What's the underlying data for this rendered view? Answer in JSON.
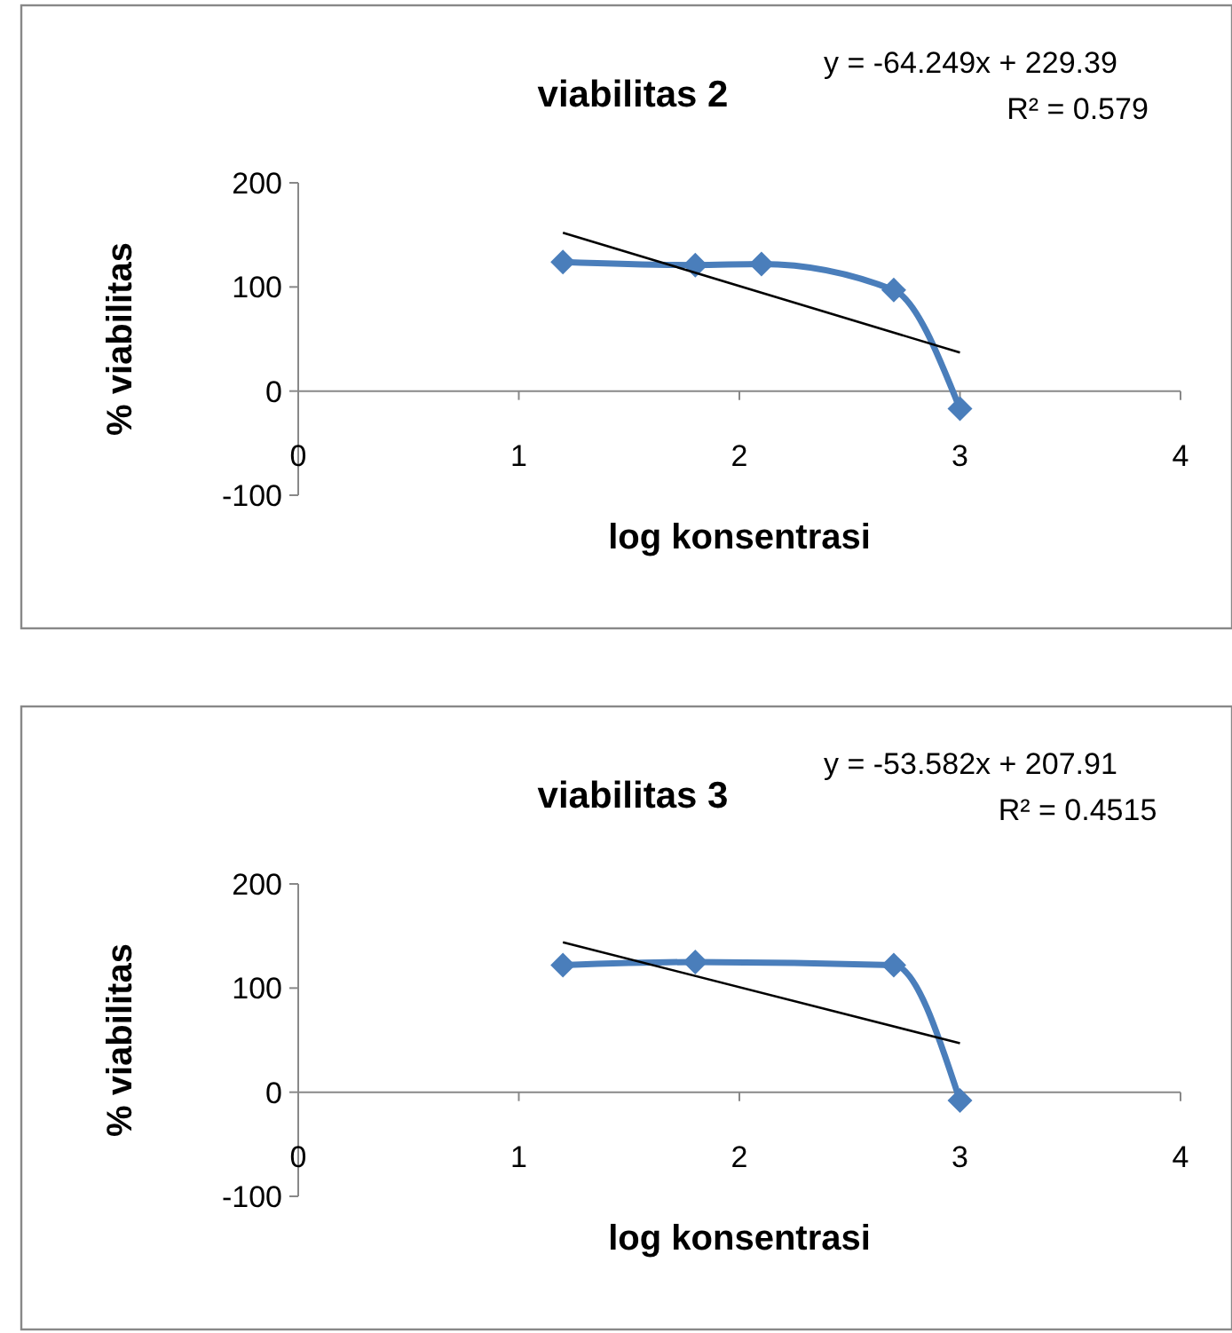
{
  "chart_data": [
    {
      "type": "line",
      "title": "viabilitas 2",
      "xlabel": "log konsentrasi",
      "ylabel": "% viabilitas",
      "xlim": [
        0,
        4
      ],
      "xticks": [
        0,
        1,
        2,
        3,
        4
      ],
      "ylim": [
        -100,
        200
      ],
      "yticks": [
        -100,
        0,
        100,
        200
      ],
      "grid": false,
      "annotations": [
        "y = -64.249x + 229.39",
        "R² = 0.579"
      ],
      "series": [
        {
          "color": "#4a7ebb",
          "marker": "diamond",
          "line_style": "solid",
          "x": [
            1.2,
            1.8,
            2.1,
            2.7,
            3
          ],
          "values": [
            124,
            121,
            122,
            97,
            -17
          ]
        },
        {
          "color": "#000000",
          "marker": "none",
          "line_style": "solid",
          "x": [
            1.2,
            3
          ],
          "values": [
            152,
            37
          ]
        }
      ]
    },
    {
      "type": "line",
      "title": "viabilitas 3",
      "xlabel": "log konsentrasi",
      "ylabel": "% viabilitas",
      "xlim": [
        0,
        4
      ],
      "xticks": [
        0,
        1,
        2,
        3,
        4
      ],
      "ylim": [
        -100,
        200
      ],
      "yticks": [
        -100,
        0,
        100,
        200
      ],
      "grid": false,
      "annotations": [
        "y = -53.582x + 207.91",
        "R² = 0.4515"
      ],
      "series": [
        {
          "color": "#4a7ebb",
          "marker": "diamond",
          "line_style": "solid",
          "x": [
            1.2,
            1.8,
            2.7,
            3
          ],
          "values": [
            122,
            125,
            122,
            -8
          ]
        },
        {
          "color": "#000000",
          "marker": "none",
          "line_style": "solid",
          "x": [
            1.2,
            3
          ],
          "values": [
            144,
            47
          ]
        }
      ]
    }
  ]
}
